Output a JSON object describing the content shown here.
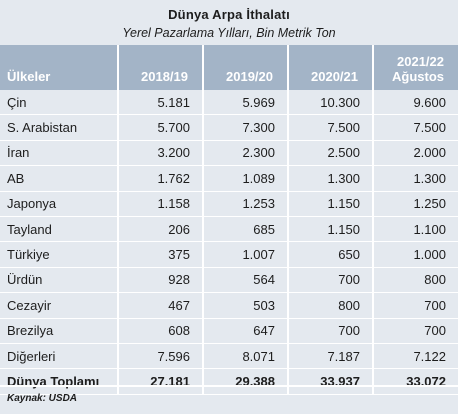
{
  "title": "Dünya Arpa İthalatı",
  "subtitle": "Yerel Pazarlama Yılları, Bin Metrik Ton",
  "headers": [
    "Ülkeler",
    "2018/19",
    "2019/20",
    "2020/21",
    "2021/22",
    "Ağustos"
  ],
  "rows": [
    {
      "country": "Çin",
      "v1": "5.181",
      "v2": "5.969",
      "v3": "10.300",
      "v4": "9.600"
    },
    {
      "country": "S. Arabistan",
      "v1": "5.700",
      "v2": "7.300",
      "v3": "7.500",
      "v4": "7.500"
    },
    {
      "country": "İran",
      "v1": "3.200",
      "v2": "2.300",
      "v3": "2.500",
      "v4": "2.000"
    },
    {
      "country": "AB",
      "v1": "1.762",
      "v2": "1.089",
      "v3": "1.300",
      "v4": "1.300"
    },
    {
      "country": "Japonya",
      "v1": "1.158",
      "v2": "1.253",
      "v3": "1.150",
      "v4": "1.250"
    },
    {
      "country": "Tayland",
      "v1": "206",
      "v2": "685",
      "v3": "1.150",
      "v4": "1.100"
    },
    {
      "country": "Türkiye",
      "v1": "375",
      "v2": "1.007",
      "v3": "650",
      "v4": "1.000"
    },
    {
      "country": "Ürdün",
      "v1": "928",
      "v2": "564",
      "v3": "700",
      "v4": "800"
    },
    {
      "country": "Cezayir",
      "v1": "467",
      "v2": "503",
      "v3": "800",
      "v4": "700"
    },
    {
      "country": "Brezilya",
      "v1": "608",
      "v2": "647",
      "v3": "700",
      "v4": "700"
    },
    {
      "country": "Diğerleri",
      "v1": "7.596",
      "v2": "8.071",
      "v3": "7.187",
      "v4": "7.122"
    }
  ],
  "total": {
    "country": "Dünya Toplamı",
    "v1": "27.181",
    "v2": "29.388",
    "v3": "33.937",
    "v4": "33.072"
  },
  "source": "Kaynak: USDA",
  "colors": {
    "header_bg": "#a3b4c7",
    "body_bg": "#e4e9ef"
  }
}
